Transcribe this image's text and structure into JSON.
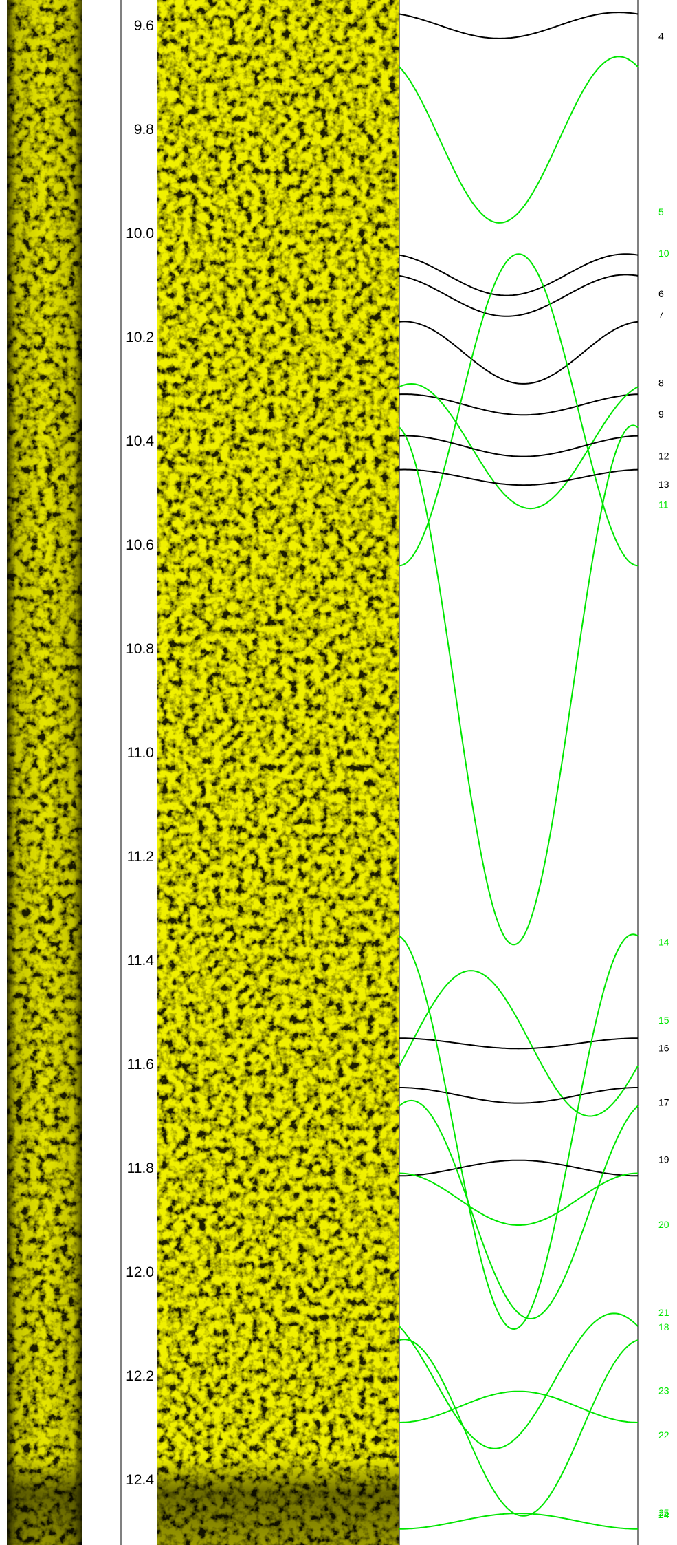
{
  "depth_axis": {
    "unit": "",
    "ticks": [
      "9.6",
      "9.8",
      "10.0",
      "10.2",
      "10.4",
      "10.6",
      "10.8",
      "11.0",
      "11.2",
      "11.4",
      "11.6",
      "11.8",
      "12.0",
      "12.2",
      "12.4"
    ],
    "top_depth": 9.56,
    "bottom_depth": 12.5
  },
  "colors": {
    "image_base": "#8a8a00",
    "image_bright": "#ffff33",
    "image_dark": "#1a1a00",
    "sinusoid_black": "#000000",
    "sinusoid_green": "#00e600",
    "label_black": "#000000",
    "label_green": "#00e600"
  },
  "picks": [
    {
      "id": "4",
      "color": "black",
      "depth": 9.6,
      "amplitude": 0.025,
      "phase": 0.42
    },
    {
      "id": "5",
      "color": "green",
      "depth": 9.82,
      "amplitude": 0.16,
      "phase": 0.42
    },
    {
      "id": "6",
      "color": "black",
      "depth": 10.08,
      "amplitude": 0.04,
      "phase": 0.45
    },
    {
      "id": "7",
      "color": "black",
      "depth": 10.12,
      "amplitude": 0.04,
      "phase": 0.45
    },
    {
      "id": "8",
      "color": "black",
      "depth": 10.23,
      "amplitude": 0.06,
      "phase": 0.52
    },
    {
      "id": "9",
      "color": "black",
      "depth": 10.33,
      "amplitude": 0.02,
      "phase": 0.52
    },
    {
      "id": "10",
      "color": "green",
      "depth": 10.34,
      "amplitude": 0.3,
      "phase": 0.0
    },
    {
      "id": "11",
      "color": "green",
      "depth": 10.41,
      "amplitude": 0.12,
      "phase": 0.55
    },
    {
      "id": "12",
      "color": "black",
      "depth": 10.41,
      "amplitude": 0.02,
      "phase": 0.52
    },
    {
      "id": "13",
      "color": "black",
      "depth": 10.47,
      "amplitude": 0.015,
      "phase": 0.52
    },
    {
      "id": "14",
      "color": "green",
      "depth": 10.87,
      "amplitude": 0.5,
      "phase": 0.48
    },
    {
      "id": "15",
      "color": "green",
      "depth": 11.56,
      "amplitude": 0.14,
      "phase": 0.8
    },
    {
      "id": "16",
      "color": "black",
      "depth": 11.56,
      "amplitude": 0.01,
      "phase": 0.5
    },
    {
      "id": "17",
      "color": "black",
      "depth": 11.66,
      "amplitude": 0.015,
      "phase": 0.5
    },
    {
      "id": "18",
      "color": "green",
      "depth": 11.73,
      "amplitude": 0.38,
      "phase": 0.48
    },
    {
      "id": "19",
      "color": "black",
      "depth": 11.8,
      "amplitude": 0.015,
      "phase": 0.0
    },
    {
      "id": "20",
      "color": "green",
      "depth": 11.86,
      "amplitude": 0.05,
      "phase": 0.5
    },
    {
      "id": "21",
      "color": "green",
      "depth": 11.88,
      "amplitude": 0.21,
      "phase": 0.55
    },
    {
      "id": "22",
      "color": "green",
      "depth": 12.21,
      "amplitude": 0.13,
      "phase": 0.4
    },
    {
      "id": "23",
      "color": "green",
      "depth": 12.26,
      "amplitude": 0.03,
      "phase": 0.0
    },
    {
      "id": "24",
      "color": "green",
      "depth": 12.3,
      "amplitude": 0.17,
      "phase": 0.52
    },
    {
      "id": "25",
      "color": "green",
      "depth": 12.48,
      "amplitude": 0.015,
      "phase": 0.0
    }
  ]
}
